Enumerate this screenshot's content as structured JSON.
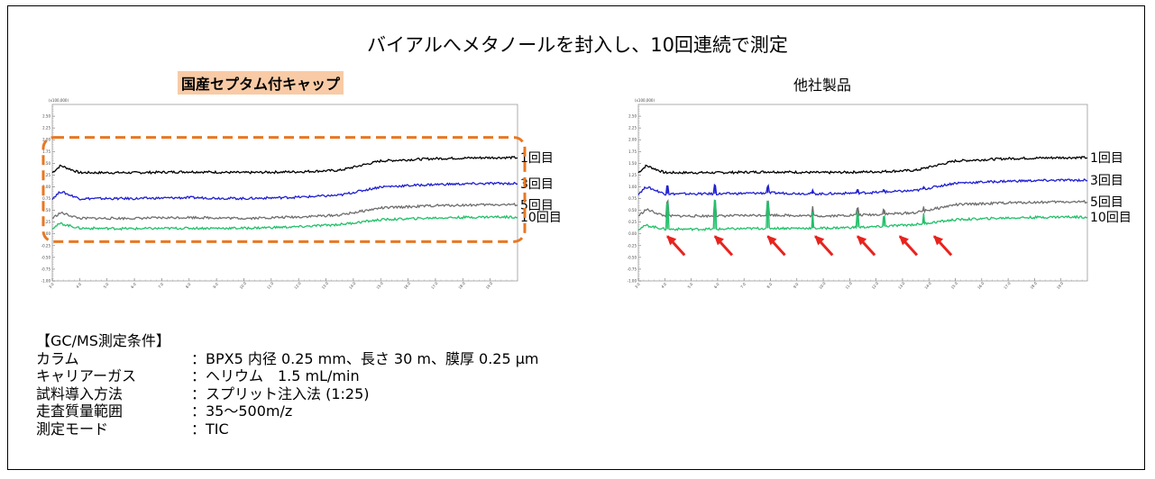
{
  "title": "バイアルへメタノールを封入し、10回連続で測定",
  "conditions": {
    "heading": "【GC/MS測定条件】",
    "rows": [
      {
        "label": "カラム",
        "value": "：BPX5 内径 0.25 mm、長さ 30 m、膜厚 0.25 µm"
      },
      {
        "label": "キャリアーガス",
        "value": "：ヘリウム　1.5 mL/min"
      },
      {
        "label": "試料導入方法",
        "value": "：スプリット注入法 (1:25)"
      },
      {
        "label": "走査質量範囲",
        "value": "：35～500m/z"
      },
      {
        "label": "測定モード",
        "value": "：TIC"
      }
    ]
  },
  "colors": {
    "run1": "#000000",
    "run3": "#1f1fd0",
    "run5": "#6e6e6e",
    "run10": "#22c06a",
    "highlight_box": "#e87722",
    "title_highlight": "#f8cba6",
    "arrow": "#e8231e"
  },
  "chart_data": [
    {
      "type": "line",
      "title": "国産セプタム付キャップ",
      "y_multiplier_label": "(x100,000)",
      "ylim": [
        -1.0,
        2.75
      ],
      "y_ticks": [
        "2.50",
        "2.25",
        "2.00",
        "1.75",
        "1.50",
        "1.25",
        "1.00",
        "0.75",
        "0.50",
        "0.25",
        "0.00",
        "-0.25",
        "-0.50",
        "-0.75",
        "-1.00"
      ],
      "xlim": [
        3.0,
        20.0
      ],
      "x_ticks": [
        "3.0",
        "4.0",
        "5.0",
        "6.0",
        "7.0",
        "8.0",
        "9.0",
        "10.0",
        "11.0",
        "12.0",
        "13.0",
        "14.0",
        "15.0",
        "16.0",
        "17.0",
        "18.0",
        "19.0"
      ],
      "grid": false,
      "highlight": "dashed rounded box around all traces",
      "series": [
        {
          "name": "1回目",
          "color_key": "run1",
          "x": [
            3.0,
            3.3,
            4,
            6,
            8,
            10,
            12,
            13.5,
            15,
            17,
            19,
            20
          ],
          "y": [
            1.3,
            1.45,
            1.3,
            1.3,
            1.32,
            1.3,
            1.32,
            1.35,
            1.55,
            1.6,
            1.62,
            1.62
          ]
        },
        {
          "name": "3回目",
          "color_key": "run3",
          "x": [
            3.0,
            3.3,
            4,
            6,
            8,
            10,
            12,
            13.5,
            15,
            17,
            19,
            20
          ],
          "y": [
            0.75,
            0.9,
            0.75,
            0.75,
            0.77,
            0.75,
            0.78,
            0.82,
            1.0,
            1.05,
            1.07,
            1.07
          ]
        },
        {
          "name": "5回目",
          "color_key": "run5",
          "x": [
            3.0,
            3.3,
            4,
            6,
            8,
            10,
            12,
            13.5,
            15,
            17,
            19,
            20
          ],
          "y": [
            0.33,
            0.45,
            0.33,
            0.33,
            0.35,
            0.33,
            0.36,
            0.4,
            0.55,
            0.6,
            0.62,
            0.62
          ]
        },
        {
          "name": "10回目",
          "color_key": "run10",
          "x": [
            3.0,
            3.3,
            4,
            6,
            8,
            10,
            12,
            13.5,
            15,
            17,
            19,
            20
          ],
          "y": [
            0.12,
            0.22,
            0.12,
            0.11,
            0.12,
            0.12,
            0.15,
            0.2,
            0.3,
            0.34,
            0.36,
            0.36
          ]
        }
      ]
    },
    {
      "type": "line",
      "title": "他社製品",
      "y_multiplier_label": "(x100,000)",
      "ylim": [
        -1.0,
        2.75
      ],
      "y_ticks": [
        "2.50",
        "2.25",
        "2.00",
        "1.75",
        "1.50",
        "1.25",
        "1.00",
        "0.75",
        "0.50",
        "0.25",
        "0.00",
        "-0.25",
        "-0.50",
        "-0.75",
        "-1.00"
      ],
      "xlim": [
        3.0,
        20.0
      ],
      "x_ticks": [
        "3.0",
        "4.0",
        "5.0",
        "6.0",
        "7.0",
        "8.0",
        "9.0",
        "10.0",
        "11.0",
        "12.0",
        "13.0",
        "14.0",
        "15.0",
        "16.0",
        "17.0",
        "18.0",
        "19.0"
      ],
      "grid": false,
      "peaks_x": [
        4.1,
        5.9,
        7.9,
        9.6,
        11.3,
        12.3,
        13.8
      ],
      "arrows_at_x": [
        4.1,
        5.9,
        7.9,
        9.7,
        11.3,
        12.9,
        14.2
      ],
      "series": [
        {
          "name": "1回目",
          "color_key": "run1",
          "x": [
            3.0,
            3.3,
            4,
            6,
            8,
            10,
            12,
            13.5,
            15,
            17,
            19,
            20
          ],
          "y": [
            1.3,
            1.45,
            1.3,
            1.3,
            1.32,
            1.3,
            1.32,
            1.35,
            1.55,
            1.6,
            1.62,
            1.62
          ],
          "peak_heights": [
            0,
            0,
            0,
            0,
            0,
            0,
            0
          ]
        },
        {
          "name": "3回目",
          "color_key": "run3",
          "x": [
            3.0,
            3.3,
            4,
            6,
            8,
            10,
            12,
            13.5,
            15,
            17,
            19,
            20
          ],
          "y": [
            0.85,
            1.0,
            0.85,
            0.85,
            0.87,
            0.85,
            0.88,
            0.92,
            1.08,
            1.12,
            1.14,
            1.14
          ],
          "peak_heights": [
            0.18,
            0.18,
            0.14,
            0.08,
            0.05,
            0.05,
            0.05
          ]
        },
        {
          "name": "5回目",
          "color_key": "run5",
          "x": [
            3.0,
            3.3,
            4,
            6,
            8,
            10,
            12,
            13.5,
            15,
            17,
            19,
            20
          ],
          "y": [
            0.38,
            0.52,
            0.38,
            0.38,
            0.4,
            0.38,
            0.41,
            0.45,
            0.62,
            0.66,
            0.68,
            0.68
          ],
          "peak_heights": [
            0.3,
            0.3,
            0.3,
            0.2,
            0.15,
            0.1,
            0.1
          ]
        },
        {
          "name": "10回目",
          "color_key": "run10",
          "x": [
            3.0,
            3.3,
            4,
            6,
            8,
            10,
            12,
            13.5,
            15,
            17,
            19,
            20
          ],
          "y": [
            0.1,
            0.18,
            0.1,
            0.1,
            0.12,
            0.12,
            0.15,
            0.2,
            0.3,
            0.34,
            0.36,
            0.36
          ],
          "peak_heights": [
            0.55,
            0.6,
            0.55,
            0.35,
            0.3,
            0.2,
            0.2
          ]
        }
      ]
    }
  ]
}
